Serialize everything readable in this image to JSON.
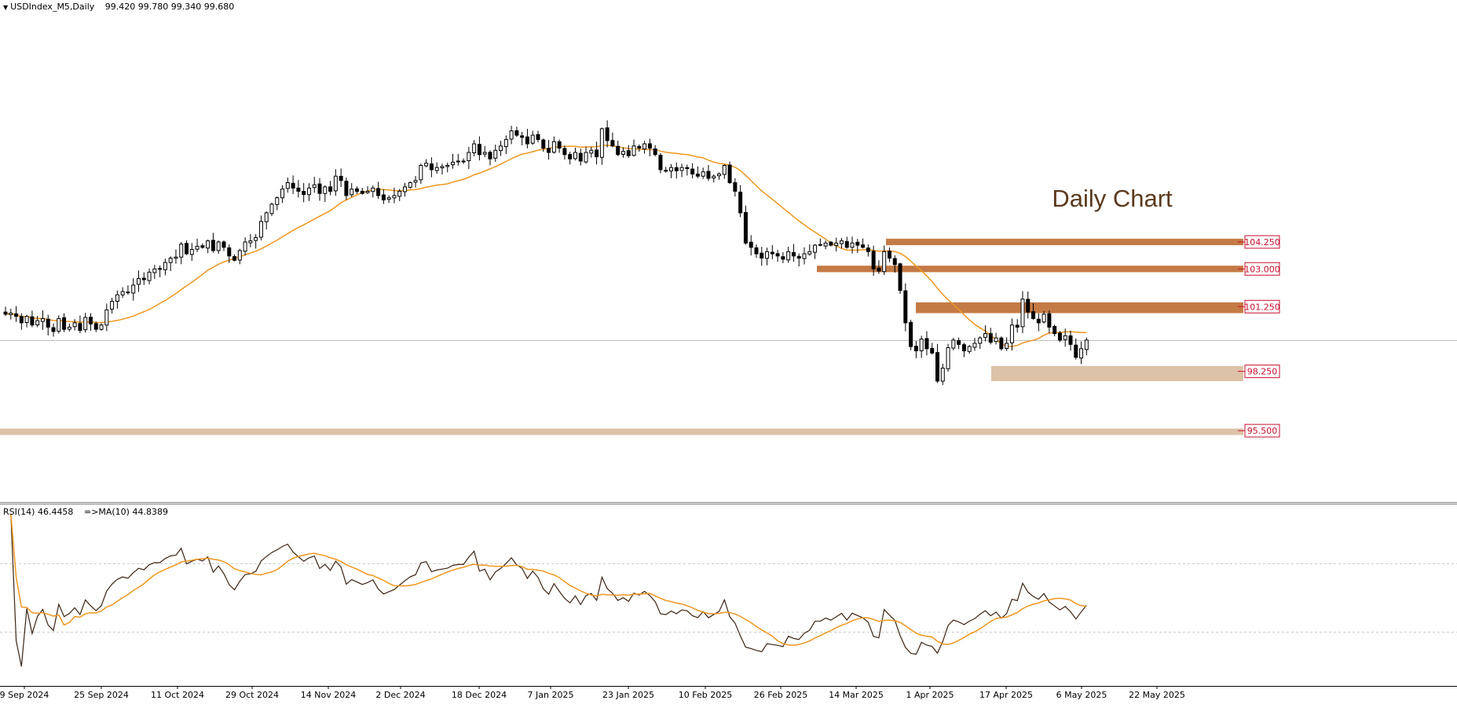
{
  "header": {
    "symbol_timeframe": "USDIndex_M5,Daily",
    "open": "99.420",
    "high": "99.780",
    "low": "99.340",
    "close": "99.680"
  },
  "annotation": "Daily Chart",
  "rsi_header": {
    "label": "RSI(14) 46.4458",
    "ma_label": "=>MA(10) 44.8389"
  },
  "colors": {
    "candle_outline": "#000000",
    "ma_line": "#f0961e",
    "resistance_zone": "#c47a45",
    "support_zone": "#dcc2a7",
    "level_label": "#c8102e",
    "rsi_line": "#3c2314",
    "rsi_ma_line": "#f0961e",
    "annotation_text": "#5a3a1e"
  },
  "chart_data": [
    {
      "type": "candlestick",
      "title": "",
      "price_range": [
        93.4,
        110.8
      ],
      "last_price_line": 99.68,
      "x_tick_labels": [
        "9 Sep 2024",
        "25 Sep 2024",
        "11 Oct 2024",
        "29 Oct 2024",
        "14 Nov 2024",
        "2 Dec 2024",
        "18 Dec 2024",
        "7 Jan 2025",
        "23 Jan 2025",
        "10 Feb 2025",
        "26 Feb 2025",
        "14 Mar 2025",
        "1 Apr 2025",
        "17 Apr 2025",
        "6 May 2025",
        "22 May 2025"
      ],
      "close": [
        100.9,
        100.95,
        100.8,
        100.5,
        100.8,
        100.4,
        100.6,
        100.7,
        100.3,
        100.1,
        100.7,
        100.2,
        100.3,
        100.5,
        100.15,
        100.75,
        100.45,
        100.2,
        100.4,
        101.1,
        101.5,
        101.8,
        101.95,
        101.9,
        102.25,
        102.55,
        102.5,
        102.85,
        103.0,
        103.0,
        103.3,
        103.5,
        103.55,
        104.15,
        103.7,
        103.9,
        104.05,
        104.0,
        104.3,
        103.85,
        104.25,
        104.0,
        103.6,
        103.4,
        103.85,
        104.25,
        104.3,
        104.45,
        105.2,
        105.6,
        106.0,
        106.3,
        106.7,
        107.0,
        106.75,
        106.6,
        106.45,
        106.75,
        106.9,
        106.5,
        106.8,
        106.6,
        107.3,
        107.1,
        106.4,
        106.7,
        106.6,
        106.5,
        106.6,
        106.75,
        106.4,
        106.2,
        106.3,
        106.4,
        106.6,
        106.8,
        107.0,
        107.1,
        107.8,
        107.9,
        107.6,
        107.7,
        107.75,
        107.8,
        107.95,
        108.0,
        108.0,
        108.4,
        108.8,
        108.3,
        108.4,
        108.1,
        108.5,
        108.7,
        109.0,
        109.4,
        109.2,
        109.1,
        108.8,
        109.2,
        109.0,
        108.6,
        108.4,
        108.9,
        108.6,
        108.3,
        108.1,
        108.4,
        108.0,
        108.4,
        108.5,
        108.2,
        109.5,
        108.95,
        108.7,
        108.3,
        108.45,
        108.25,
        108.7,
        108.6,
        108.8,
        108.6,
        108.3,
        107.6,
        107.55,
        107.7,
        107.55,
        107.7,
        107.65,
        107.4,
        107.3,
        107.5,
        107.2,
        107.3,
        107.4,
        107.8,
        107.0,
        106.6,
        105.6,
        104.2,
        104.0,
        103.7,
        103.5,
        103.8,
        103.7,
        103.6,
        103.45,
        103.8,
        103.6,
        103.5,
        103.7,
        103.8,
        104.1,
        104.1,
        104.2,
        104.1,
        104.2,
        104.3,
        104.0,
        104.2,
        104.1,
        104.0,
        103.8,
        103.0,
        102.9,
        103.8,
        103.5,
        103.2,
        102.0,
        100.5,
        99.4,
        99.2,
        99.75,
        99.3,
        99.1,
        97.8,
        98.4,
        99.35,
        99.7,
        99.5,
        99.2,
        99.4,
        99.55,
        99.8,
        100.0,
        99.6,
        99.8,
        99.3,
        99.55,
        100.4,
        100.3,
        101.6,
        101.0,
        100.7,
        100.5,
        100.9,
        100.3,
        100.0,
        99.7,
        99.9,
        99.5,
        98.9,
        99.3,
        99.7
      ],
      "series": [
        {
          "name": "",
          "type": "line",
          "indicator": "moving-average"
        }
      ],
      "horizontal_zones": [
        {
          "label": "104.250",
          "price": 104.25,
          "low": 104.1,
          "high": 104.4,
          "style": "resistance"
        },
        {
          "label": "103.000",
          "price": 103.0,
          "low": 102.85,
          "high": 103.15,
          "style": "resistance"
        },
        {
          "label": "101.250",
          "price": 101.25,
          "low": 100.95,
          "high": 101.45,
          "style": "resistance"
        },
        {
          "label": "98.250",
          "price": 98.25,
          "low": 97.8,
          "high": 98.5,
          "style": "support"
        },
        {
          "label": "95.500",
          "price": 95.5,
          "low": 95.3,
          "high": 95.6,
          "style": "support"
        }
      ]
    },
    {
      "type": "line",
      "title": "",
      "ylim": [
        0,
        100
      ],
      "levels": [
        70,
        30
      ],
      "series": [
        {
          "name": "RSI(14)",
          "last_value": 46.4458
        },
        {
          "name": "MA(10)",
          "last_value": 44.8389
        }
      ]
    }
  ]
}
